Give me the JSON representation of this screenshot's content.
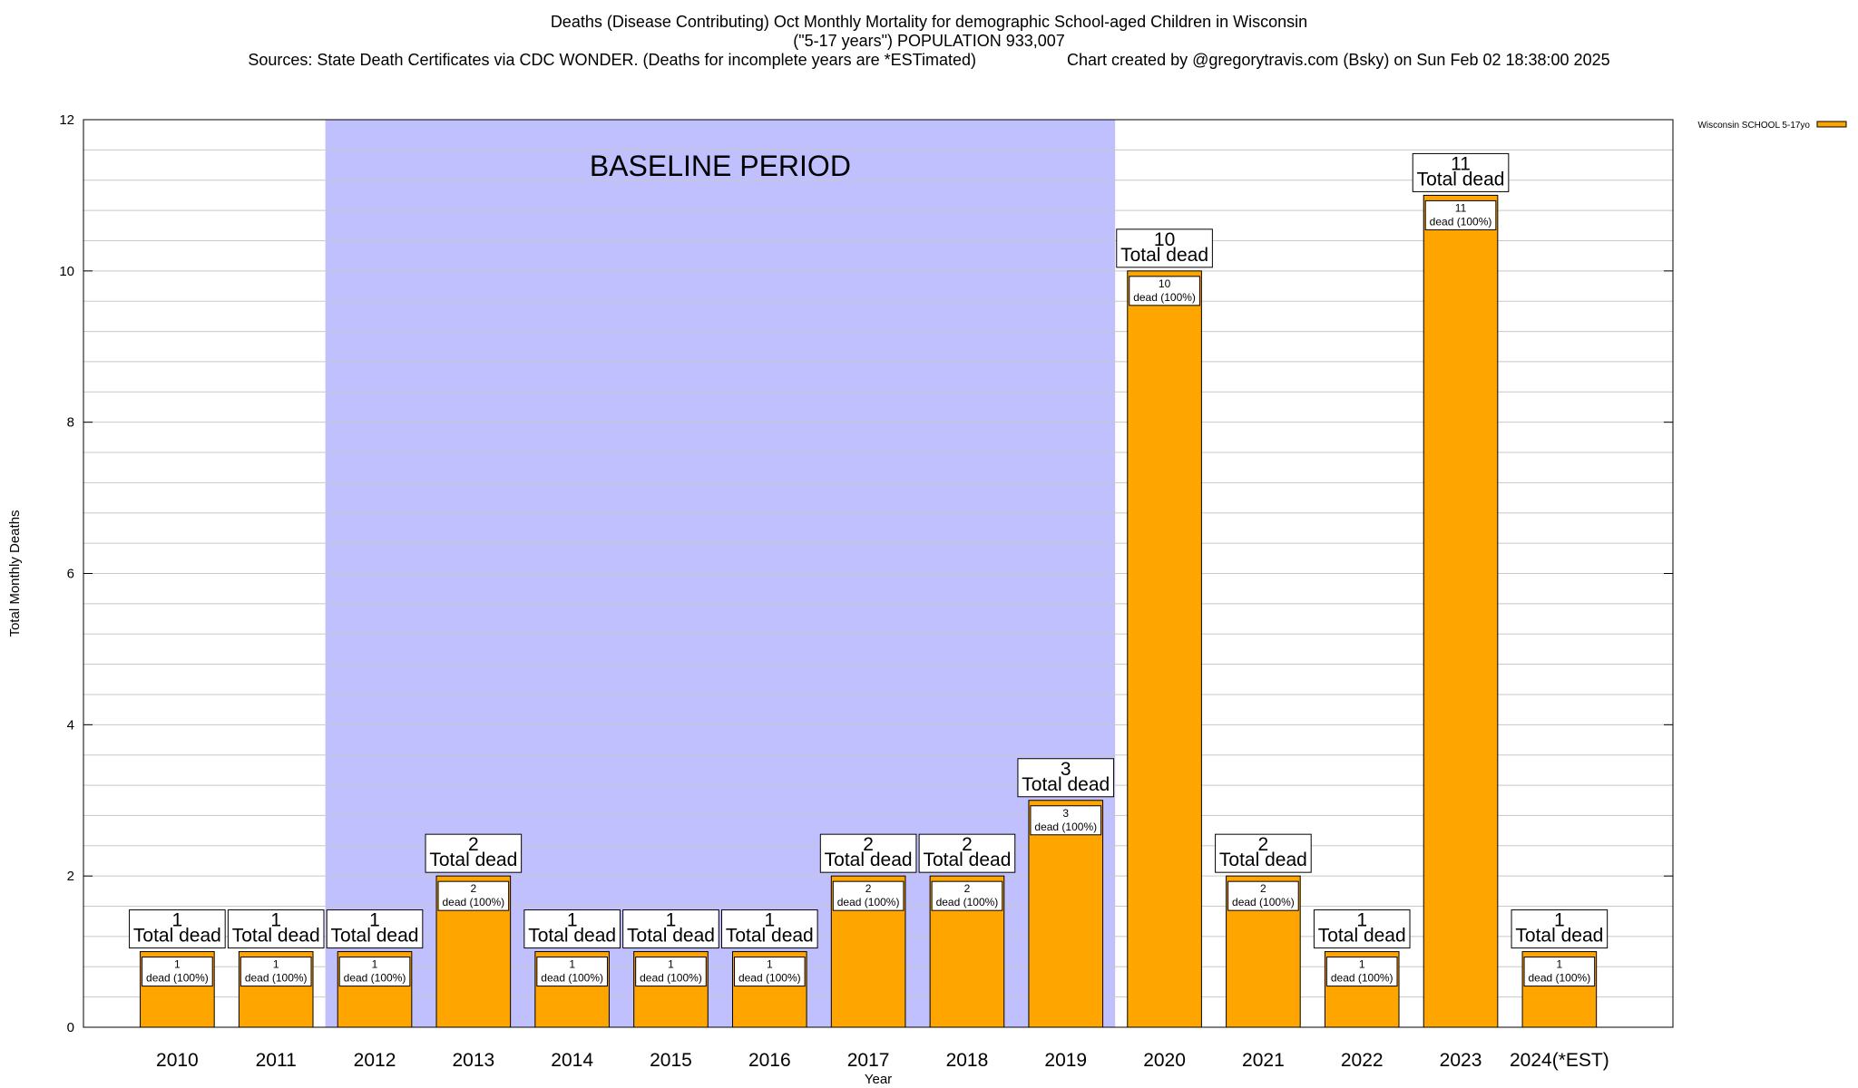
{
  "title": {
    "line1": "Deaths (Disease Contributing) Oct Monthly Mortality for demographic School-aged Children in Wisconsin",
    "line2": "(\"5-17 years\") POPULATION 933,007",
    "line3": "Sources: State Death Certificates via CDC WONDER. (Deaths for incomplete years are *ESTimated)                    Chart created by @gregorytravis.com (Bsky) on Sun Feb 02 18:38:00 2025"
  },
  "colors": {
    "bar": "#ffa500",
    "baseline_band": "#c0c0ff",
    "grid": "#c8c8c8"
  },
  "chart_data": {
    "type": "bar",
    "categories": [
      "2010",
      "2011",
      "2012",
      "2013",
      "2014",
      "2015",
      "2016",
      "2017",
      "2018",
      "2019",
      "2020",
      "2021",
      "2022",
      "2023",
      "2024(*EST)"
    ],
    "series": [
      {
        "name": "Wisconsin SCHOOL 5-17yo",
        "values": [
          1,
          1,
          1,
          2,
          1,
          1,
          1,
          2,
          2,
          3,
          10,
          2,
          1,
          11,
          1
        ]
      }
    ],
    "xlabel": "Year",
    "ylabel": "Total Monthly Deaths",
    "ylim": [
      0,
      12
    ],
    "yticks": [
      0,
      2,
      4,
      6,
      8,
      10,
      12
    ],
    "grid": true,
    "legend_position": "top-right",
    "total_label_suffix": "Total dead",
    "inner_label_suffix": "dead (100%)",
    "baseline": {
      "label": "BASELINE PERIOD",
      "from": "2012",
      "to": "2019"
    }
  }
}
